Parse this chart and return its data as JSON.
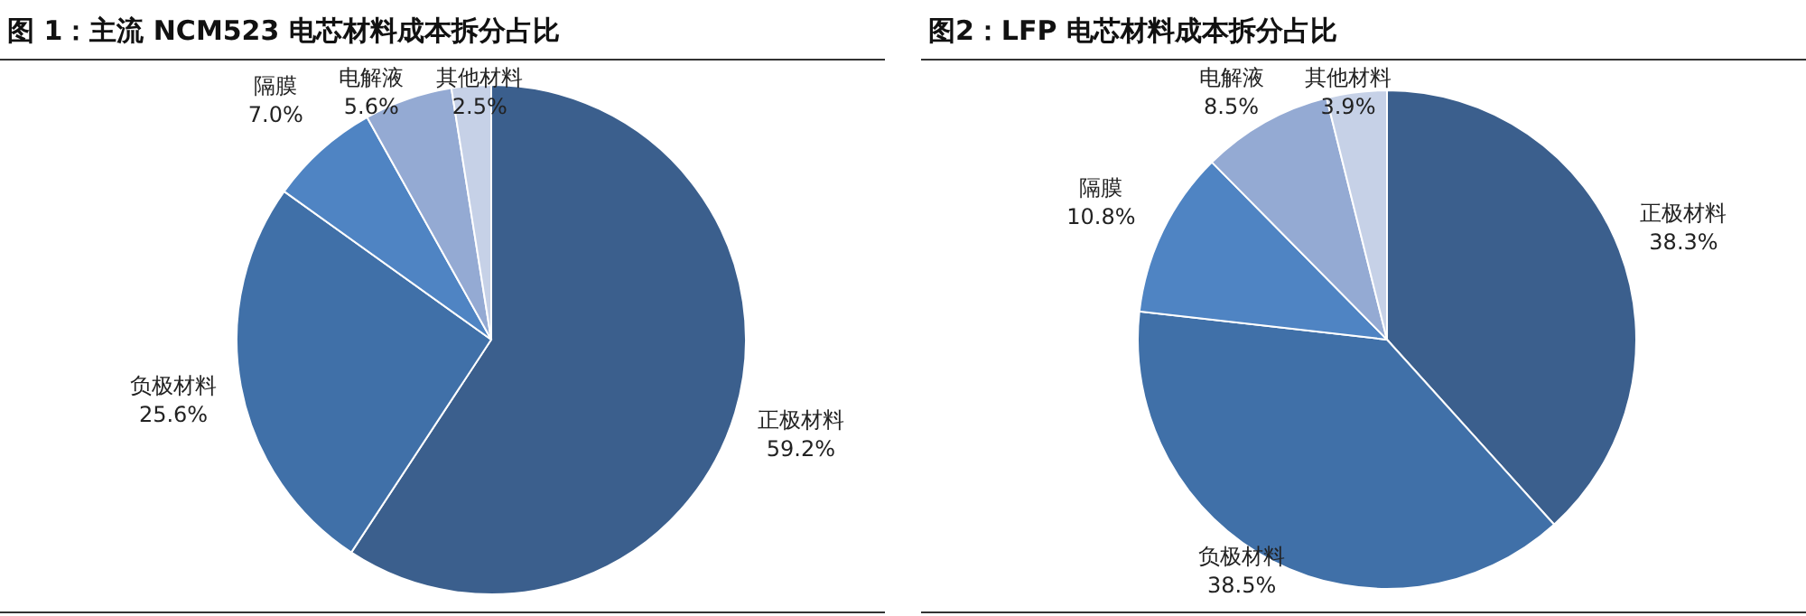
{
  "chart_data": [
    {
      "type": "pie",
      "title": "图 1：主流 NCM523 电芯材料成本拆分占比",
      "categories": [
        "正极材料",
        "负极材料",
        "隔膜",
        "电解液",
        "其他材料"
      ],
      "values": [
        59.2,
        25.6,
        7.0,
        5.6,
        2.5
      ],
      "value_labels": [
        "59.2%",
        "25.6%",
        "7.0%",
        "5.6%",
        "2.5%"
      ],
      "colors": [
        "#3b5f8d",
        "#4070a8",
        "#4f84c3",
        "#94aad3",
        "#c6d1e7"
      ]
    },
    {
      "type": "pie",
      "title": "图2：LFP 电芯材料成本拆分占比",
      "categories": [
        "正极材料",
        "负极材料",
        "隔膜",
        "电解液",
        "其他材料"
      ],
      "values": [
        38.3,
        38.5,
        10.8,
        8.5,
        3.9
      ],
      "value_labels": [
        "38.3%",
        "38.5%",
        "10.8%",
        "8.5%",
        "3.9%"
      ],
      "colors": [
        "#3b5f8d",
        "#4070a8",
        "#4f84c3",
        "#94aad3",
        "#c6d1e7"
      ]
    }
  ]
}
